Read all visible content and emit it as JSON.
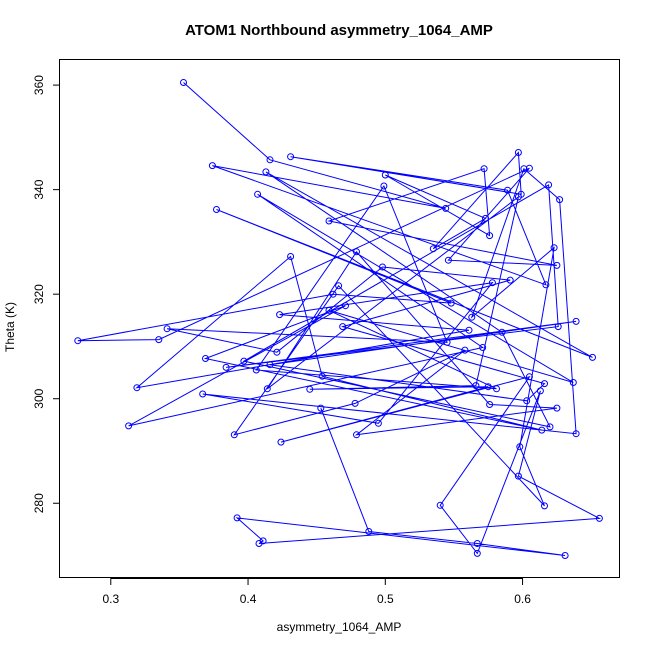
{
  "chart_data": {
    "type": "scatter",
    "title": "ATOM1 Northbound asymmetry_1064_AMP",
    "xlabel": "asymmetry_1064_AMP",
    "ylabel": "Theta (K)",
    "xlim": [
      0.263,
      0.671
    ],
    "ylim": [
      265.7,
      364.8
    ],
    "xticks": [
      0.3,
      0.4,
      0.5,
      0.6
    ],
    "yticks": [
      280,
      300,
      320,
      340,
      360
    ],
    "grid": false,
    "legend": "none",
    "colors": {
      "series": "#0000ff",
      "axis": "#000000"
    },
    "series": [
      {
        "connected": true,
        "x": [
          0.353,
          0.416,
          0.544,
          0.374,
          0.617,
          0.589,
          0.431,
          0.599,
          0.597,
          0.535,
          0.573,
          0.5,
          0.576,
          0.572,
          0.459,
          0.625,
          0.546,
          0.605,
          0.335,
          0.276,
          0.462,
          0.548,
          0.377,
          0.651,
          0.413,
          0.585,
          0.62,
          0.397,
          0.619,
          0.626,
          0.384,
          0.639,
          0.416,
          0.603,
          0.616,
          0.469,
          0.591,
          0.498,
          0.421,
          0.341,
          0.545,
          0.499,
          0.406,
          0.581,
          0.459,
          0.637,
          0.407,
          0.571,
          0.313,
          0.471,
          0.369,
          0.614,
          0.454,
          0.431,
          0.319,
          0.561,
          0.423,
          0.578,
          0.495,
          0.367,
          0.639,
          0.627,
          0.601,
          0.563,
          0.623,
          0.598,
          0.616,
          0.466,
          0.39,
          0.478,
          0.558,
          0.479,
          0.625,
          0.576,
          0.479,
          0.414,
          0.597,
          0.566,
          0.445,
          0.575,
          0.424,
          0.605,
          0.54,
          0.567,
          0.613,
          0.597,
          0.656,
          0.408,
          0.411,
          0.392,
          0.631,
          0.567,
          0.488,
          0.453
        ],
        "y": [
          360.5,
          345.7,
          336.4,
          344.6,
          321.8,
          339.9,
          346.3,
          339.1,
          347.1,
          328.7,
          334.5,
          342.8,
          331.2,
          344.0,
          334.0,
          325.5,
          326.5,
          344.1,
          311.3,
          311.1,
          320.0,
          318.3,
          336.2,
          307.9,
          343.4,
          312.7,
          294.6,
          307.2,
          340.9,
          313.8,
          306.0,
          314.8,
          306.5,
          299.6,
          302.9,
          313.8,
          322.7,
          325.2,
          308.9,
          313.4,
          310.8,
          340.7,
          305.5,
          301.9,
          316.9,
          303.1,
          339.1,
          309.8,
          294.8,
          317.8,
          307.7,
          294.0,
          304.3,
          327.2,
          302.1,
          313.1,
          316.1,
          322.2,
          295.3,
          300.9,
          293.3,
          338.1,
          344.0,
          315.6,
          328.9,
          290.8,
          279.5,
          321.6,
          293.1,
          299.1,
          309.3,
          293.1,
          298.2,
          298.9,
          328.1,
          301.9,
          338.6,
          302.5,
          301.8,
          302.3,
          291.7,
          304.2,
          279.6,
          270.4,
          301.5,
          285.2,
          277.1,
          272.3,
          272.8,
          277.2,
          270.0,
          272.3,
          274.6,
          298.2
        ]
      }
    ]
  }
}
